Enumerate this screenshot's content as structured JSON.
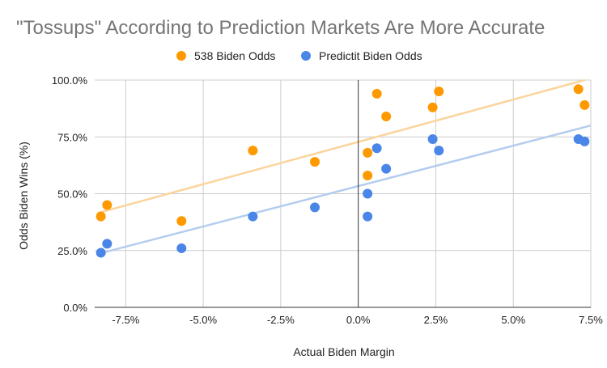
{
  "chart_data": {
    "type": "scatter",
    "title": "\"Tossups\" According to Prediction Markets Are More Accurate",
    "xlabel": "Actual Biden Margin",
    "ylabel": "Odds Biden Wins (%)",
    "xlim": [
      -8.5,
      7.5
    ],
    "ylim": [
      0,
      100
    ],
    "x_ticks": [
      -7.5,
      -5.0,
      -2.5,
      0.0,
      2.5,
      5.0,
      7.5
    ],
    "x_tick_labels": [
      "-7.5%",
      "-5.0%",
      "-2.5%",
      "0.0%",
      "2.5%",
      "5.0%",
      "7.5%"
    ],
    "y_ticks": [
      0,
      25,
      50,
      75,
      100
    ],
    "y_tick_labels": [
      "0.0%",
      "25.0%",
      "50.0%",
      "75.0%",
      "100.0%"
    ],
    "grid": true,
    "legend_position": "top",
    "series": [
      {
        "name": "538 Biden Odds",
        "color": "#ff9900",
        "trendline_color": "#fbd49b",
        "trendline": [
          [
            -8.4,
            41.5
          ],
          [
            7.3,
            100
          ]
        ],
        "points": [
          [
            -8.3,
            40
          ],
          [
            -8.1,
            45
          ],
          [
            -5.7,
            38
          ],
          [
            -3.4,
            69
          ],
          [
            -1.4,
            64
          ],
          [
            0.3,
            68
          ],
          [
            0.3,
            58
          ],
          [
            0.6,
            94
          ],
          [
            0.9,
            84
          ],
          [
            2.4,
            88
          ],
          [
            2.6,
            95
          ],
          [
            7.1,
            96
          ],
          [
            7.3,
            89
          ]
        ]
      },
      {
        "name": "Predictit Biden Odds",
        "color": "#4a86e8",
        "trendline_color": "#b4cdee",
        "trendline": [
          [
            -8.4,
            23.5
          ],
          [
            7.5,
            80
          ]
        ],
        "points": [
          [
            -8.3,
            24
          ],
          [
            -8.1,
            28
          ],
          [
            -5.7,
            26
          ],
          [
            -3.4,
            40
          ],
          [
            -1.4,
            44
          ],
          [
            0.3,
            50
          ],
          [
            0.3,
            40
          ],
          [
            0.6,
            70
          ],
          [
            0.9,
            61
          ],
          [
            2.4,
            74
          ],
          [
            2.6,
            69
          ],
          [
            7.1,
            74
          ],
          [
            7.3,
            73
          ]
        ]
      }
    ]
  }
}
